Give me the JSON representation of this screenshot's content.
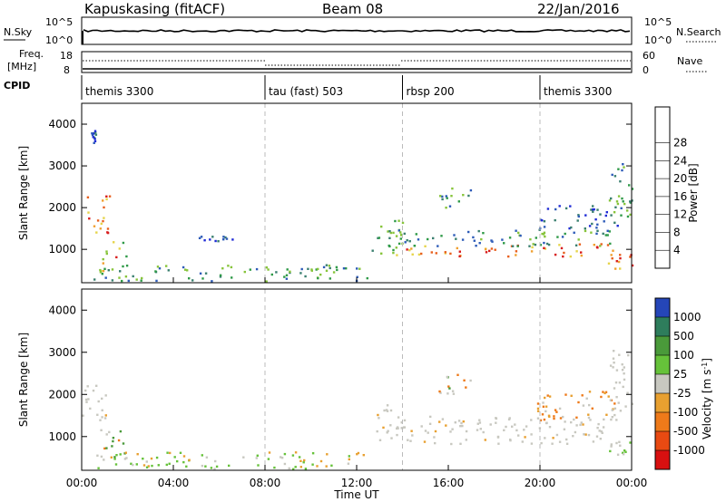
{
  "header": {
    "station": "Kapuskasing (fitACF)",
    "beam": "Beam 08",
    "date": "22/Jan/2016"
  },
  "ancillary": {
    "nsky_label": "N.Sky",
    "nsearch_label": "N.Search",
    "freq_label_1": "Freq.",
    "freq_label_2": "[MHz]",
    "nave_label": "Nave",
    "cpid_label": "CPID",
    "noise_left_ticks": [
      "10^5",
      "10^0"
    ],
    "noise_right_ticks": [
      "10^5",
      "10^0"
    ],
    "freq_left_ticks": [
      "18",
      "8"
    ],
    "freq_right_ticks": [
      "60",
      "0"
    ],
    "cpid_segments": [
      {
        "label": "themis 3300",
        "start_h": 0,
        "end_h": 8
      },
      {
        "label": "tau (fast) 503",
        "start_h": 8,
        "end_h": 14
      },
      {
        "label": "rbsp 200",
        "start_h": 14,
        "end_h": 20
      },
      {
        "label": "themis 3300",
        "start_h": 20,
        "end_h": 24
      }
    ]
  },
  "colorbars": {
    "power": {
      "label": "Power [dB]",
      "ticks": [
        "4",
        "8",
        "12",
        "16",
        "20",
        "24",
        "28"
      ],
      "colors": [
        "#1f2bd6",
        "#2d5bb8",
        "#3a7f6f",
        "#2f9a48",
        "#87c43a",
        "#e6d44a",
        "#f0a030",
        "#e8601e",
        "#d81c1c"
      ]
    },
    "velocity": {
      "label": "Velocity [m s",
      "label_sup": "-1",
      "label_end": "]",
      "ticks": [
        "1000",
        "500",
        "100",
        "25",
        "-25",
        "-100",
        "-500",
        "-1000"
      ],
      "colors": [
        "#2546b8",
        "#2e7d5c",
        "#4a9a3a",
        "#66c23a",
        "#c8c8c0",
        "#e8a030",
        "#ee7a1a",
        "#e84a12",
        "#d81010"
      ]
    }
  },
  "chart_data": [
    {
      "type": "heatmap",
      "name": "power",
      "ylabel": "Slant Range [km]",
      "xlabel": "",
      "y_ticks": [
        "1000",
        "2000",
        "3000",
        "4000"
      ],
      "ylim": [
        200,
        4500
      ],
      "xlim_h": [
        0,
        24
      ],
      "dashed_gridlines_h": [
        8,
        14,
        20
      ],
      "echo_regions": [
        {
          "t0": 0.0,
          "t1": 1.2,
          "r0": 1400,
          "r1": 2300,
          "level": "20-28 dB"
        },
        {
          "t0": 0.4,
          "t1": 0.6,
          "r0": 3500,
          "r1": 3900,
          "level": "4-12 dB"
        },
        {
          "t0": 0.8,
          "t1": 2.0,
          "r0": 500,
          "r1": 1200,
          "level": "16-28 dB"
        },
        {
          "t0": 0.5,
          "t1": 12.5,
          "r0": 250,
          "r1": 650,
          "level": "8-20 dB"
        },
        {
          "t0": 5.0,
          "t1": 7.0,
          "r0": 1200,
          "r1": 1400,
          "level": "4-8 dB"
        },
        {
          "t0": 12.6,
          "t1": 14.0,
          "r0": 900,
          "r1": 1800,
          "level": "12-20 dB"
        },
        {
          "t0": 13.7,
          "t1": 23.3,
          "r0": 850,
          "r1": 1150,
          "level": "20-28 dB"
        },
        {
          "t0": 13.5,
          "t1": 23.3,
          "r0": 1100,
          "r1": 1500,
          "level": "8-16 dB"
        },
        {
          "t0": 15.5,
          "t1": 17.0,
          "r0": 2000,
          "r1": 2500,
          "level": "8-16 dB"
        },
        {
          "t0": 19.8,
          "t1": 23.4,
          "r0": 1400,
          "r1": 2100,
          "level": "4-12 dB"
        },
        {
          "t0": 22.9,
          "t1": 24.0,
          "r0": 550,
          "r1": 900,
          "level": "20-28 dB"
        },
        {
          "t0": 23.0,
          "t1": 24.0,
          "r0": 1500,
          "r1": 3100,
          "level": "8-20 dB"
        }
      ]
    },
    {
      "type": "heatmap",
      "name": "velocity",
      "ylabel": "Slant Range [km]",
      "xlabel": "Time UT",
      "y_ticks": [
        "1000",
        "2000",
        "3000",
        "4000"
      ],
      "ylim": [
        200,
        4500
      ],
      "xlim_h": [
        0,
        24
      ],
      "x_ticks": [
        "00:00",
        "04:00",
        "08:00",
        "12:00",
        "16:00",
        "20:00",
        "00:00"
      ],
      "dashed_gridlines_h": [
        8,
        14,
        20
      ],
      "echo_regions": [
        {
          "t0": 0.0,
          "t1": 1.2,
          "r0": 1400,
          "r1": 2300,
          "level": "-25..25"
        },
        {
          "t0": 0.8,
          "t1": 2.0,
          "r0": 500,
          "r1": 1200,
          "level": "100..500 / -100..-500"
        },
        {
          "t0": 0.5,
          "t1": 12.5,
          "r0": 250,
          "r1": 650,
          "level": "25..100 / -25..25"
        },
        {
          "t0": 12.6,
          "t1": 14.0,
          "r0": 900,
          "r1": 1800,
          "level": "-25..25"
        },
        {
          "t0": 13.7,
          "t1": 23.3,
          "r0": 850,
          "r1": 1500,
          "level": "-25..25"
        },
        {
          "t0": 15.5,
          "t1": 17.0,
          "r0": 2000,
          "r1": 2500,
          "level": "100..500 / -100..-500"
        },
        {
          "t0": 19.8,
          "t1": 23.4,
          "r0": 1400,
          "r1": 2100,
          "level": "-100..-500"
        },
        {
          "t0": 22.9,
          "t1": 24.0,
          "r0": 550,
          "r1": 900,
          "level": "100..500"
        },
        {
          "t0": 23.0,
          "t1": 24.0,
          "r0": 1500,
          "r1": 3100,
          "level": "-25..25"
        }
      ]
    }
  ]
}
